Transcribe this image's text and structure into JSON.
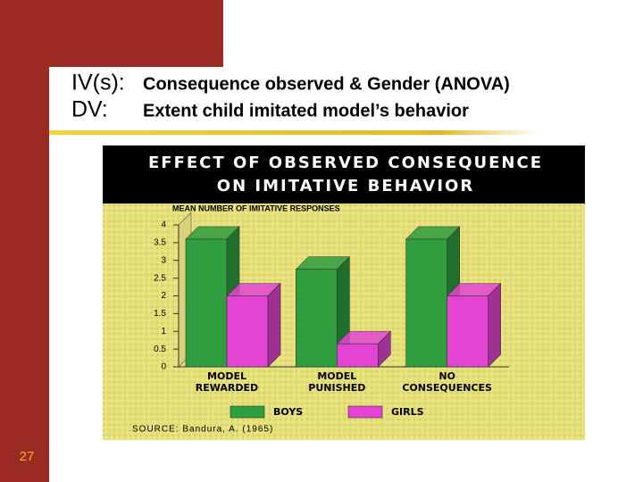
{
  "slide": {
    "iv_label": "IV(s):",
    "iv_text": "Consequence observed & Gender (ANOVA)",
    "dv_label": "DV:",
    "dv_text": "Extent child imitated model’s behavior",
    "page_number": "27"
  },
  "chart_data": {
    "type": "bar",
    "title_lines": [
      "EFFECT OF OBSERVED CONSEQUENCE",
      "ON IMITATIVE BEHAVIOR"
    ],
    "ylabel": "MEAN NUMBER OF IMITATIVE RESPONSES",
    "categories": [
      "MODEL REWARDED",
      "MODEL PUNISHED",
      "NO CONSEQUENCES"
    ],
    "series": [
      {
        "name": "BOYS",
        "color": "#2f9e3f",
        "values": [
          3.6,
          2.75,
          3.6
        ]
      },
      {
        "name": "GIRLS",
        "color": "#e444d4",
        "values": [
          2.0,
          0.65,
          2.0
        ]
      }
    ],
    "ylim": [
      0,
      4
    ],
    "yticks": [
      0,
      0.5,
      1,
      1.5,
      2,
      2.5,
      3,
      3.5,
      4
    ],
    "source": "SOURCE: Bandura, A. (1965)"
  }
}
